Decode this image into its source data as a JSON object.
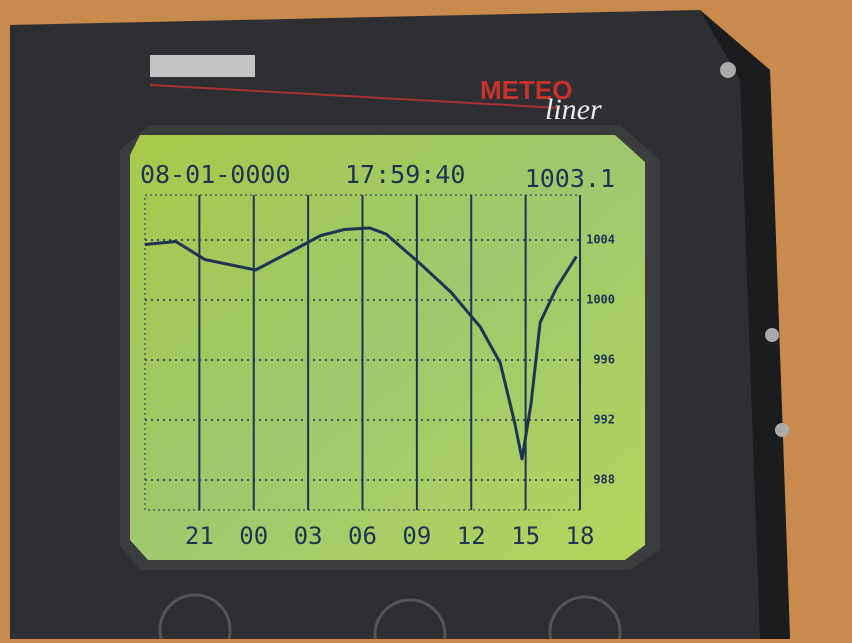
{
  "device": {
    "brand": "METEO",
    "model": "liner"
  },
  "chart_data": {
    "type": "line",
    "date": "08-01-0000",
    "time": "17:59:40",
    "current_value": 1003.1,
    "x": [
      0,
      1.7,
      3.3,
      6.1,
      8.0,
      9.7,
      11.0,
      12.4,
      13.3,
      15.2,
      16.9,
      18.5,
      19.6,
      20.4,
      20.8,
      21.3,
      21.8,
      22.7,
      23.8
    ],
    "series": [
      {
        "color": "#1e3452",
        "values": [
          1003.7,
          1003.9,
          1002.7,
          1002.0,
          1003.2,
          1004.3,
          1004.7,
          1004.8,
          1004.4,
          1002.4,
          1000.5,
          998.2,
          995.8,
          991.8,
          989.4,
          993.1,
          998.5,
          1000.8,
          1002.9
        ]
      }
    ],
    "xlim": [
      0,
      24
    ],
    "xticks": [
      {
        "value": 3,
        "label": "21"
      },
      {
        "value": 6,
        "label": "00"
      },
      {
        "value": 9,
        "label": "03"
      },
      {
        "value": 12,
        "label": "06"
      },
      {
        "value": 15,
        "label": "09"
      },
      {
        "value": 18,
        "label": "12"
      },
      {
        "value": 21,
        "label": "15"
      },
      {
        "value": 24,
        "label": "18"
      }
    ],
    "ylim": [
      986,
      1007
    ],
    "yticks": [
      988,
      992,
      996,
      1000,
      1004
    ],
    "grid": true
  }
}
